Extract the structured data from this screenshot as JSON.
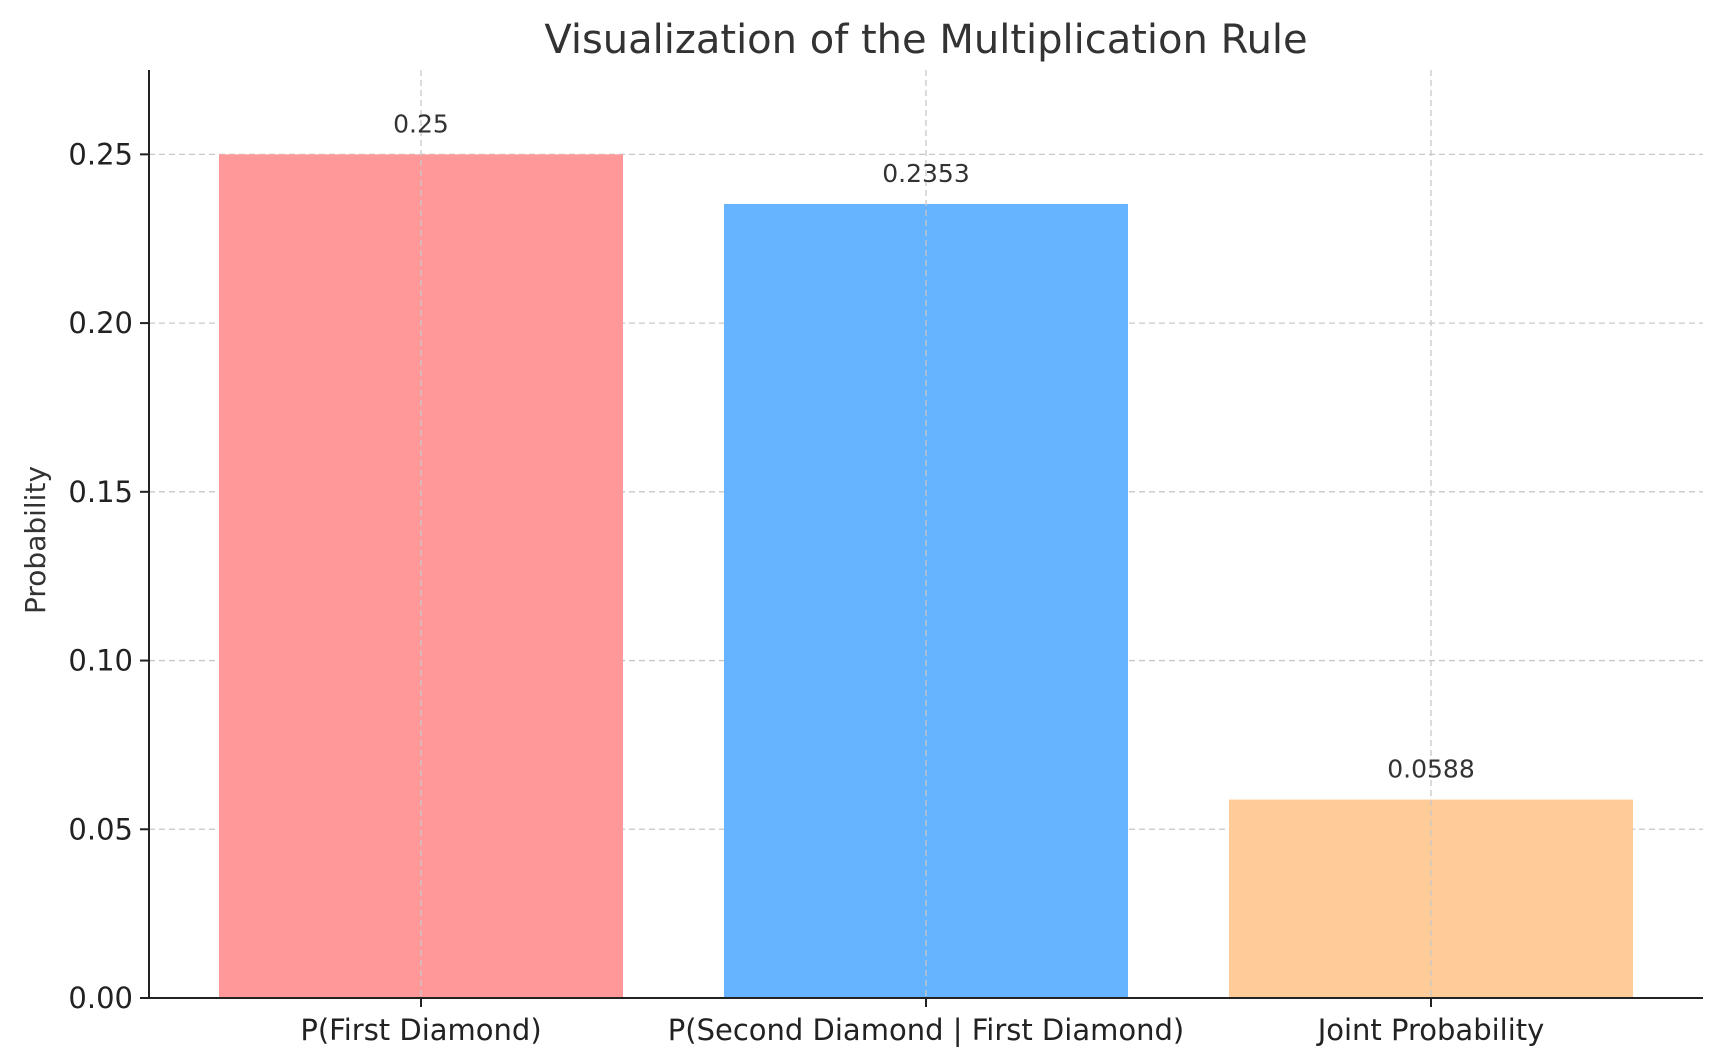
{
  "chart_data": {
    "type": "bar",
    "title": "Visualization of the Multiplication Rule",
    "xlabel": "",
    "ylabel": "Probability",
    "categories": [
      "P(First Diamond)",
      "P(Second Diamond | First Diamond)",
      "Joint Probability"
    ],
    "values": [
      0.25,
      0.2353,
      0.0588
    ],
    "data_labels": [
      "0.25",
      "0.2353",
      "0.0588"
    ],
    "colors": [
      "#ff9999",
      "#66b3ff",
      "#ffcc99"
    ],
    "ylim": [
      0,
      0.275
    ],
    "yticks": [
      0.0,
      0.05,
      0.1,
      0.15,
      0.2,
      0.25
    ],
    "ytick_labels": [
      "0.00",
      "0.05",
      "0.10",
      "0.15",
      "0.20",
      "0.25"
    ],
    "grid": true
  }
}
